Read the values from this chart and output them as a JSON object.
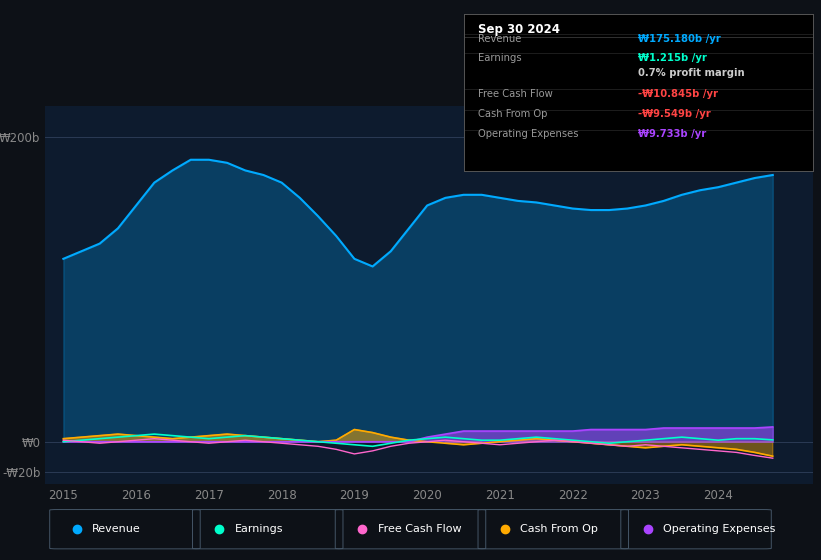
{
  "background_color": "#0d1117",
  "plot_bg_color": "#0d1b2e",
  "colors": {
    "revenue": "#00aaff",
    "earnings": "#00ffcc",
    "free_cash_flow": "#ff66cc",
    "cash_from_op": "#ffaa00",
    "operating_expenses": "#aa44ff"
  },
  "info_box": {
    "title": "Sep 30 2024",
    "rows": [
      {
        "label": "Revenue",
        "value": "₩175.180b /yr",
        "value_color": "#00aaff"
      },
      {
        "label": "Earnings",
        "value": "₩1.215b /yr",
        "value_color": "#00ffcc"
      },
      {
        "label": "",
        "value": "0.7% profit margin",
        "value_color": "#cccccc"
      },
      {
        "label": "Free Cash Flow",
        "value": "-₩10.845b /yr",
        "value_color": "#ff4444"
      },
      {
        "label": "Cash From Op",
        "value": "-₩9.549b /yr",
        "value_color": "#ff4444"
      },
      {
        "label": "Operating Expenses",
        "value": "₩9.733b /yr",
        "value_color": "#aa44ff"
      }
    ]
  },
  "ylabel_200": "₩200b",
  "ylabel_0": "₩0",
  "ylabel_neg20": "-₩20b",
  "x_ticks": [
    2015,
    2016,
    2017,
    2018,
    2019,
    2020,
    2021,
    2022,
    2023,
    2024
  ],
  "ylim": [
    -28,
    220
  ],
  "xlim": [
    2014.75,
    2025.3
  ],
  "legend_items": [
    {
      "label": "Revenue",
      "color": "#00aaff"
    },
    {
      "label": "Earnings",
      "color": "#00ffcc"
    },
    {
      "label": "Free Cash Flow",
      "color": "#ff66cc"
    },
    {
      "label": "Cash From Op",
      "color": "#ffaa00"
    },
    {
      "label": "Operating Expenses",
      "color": "#aa44ff"
    }
  ]
}
